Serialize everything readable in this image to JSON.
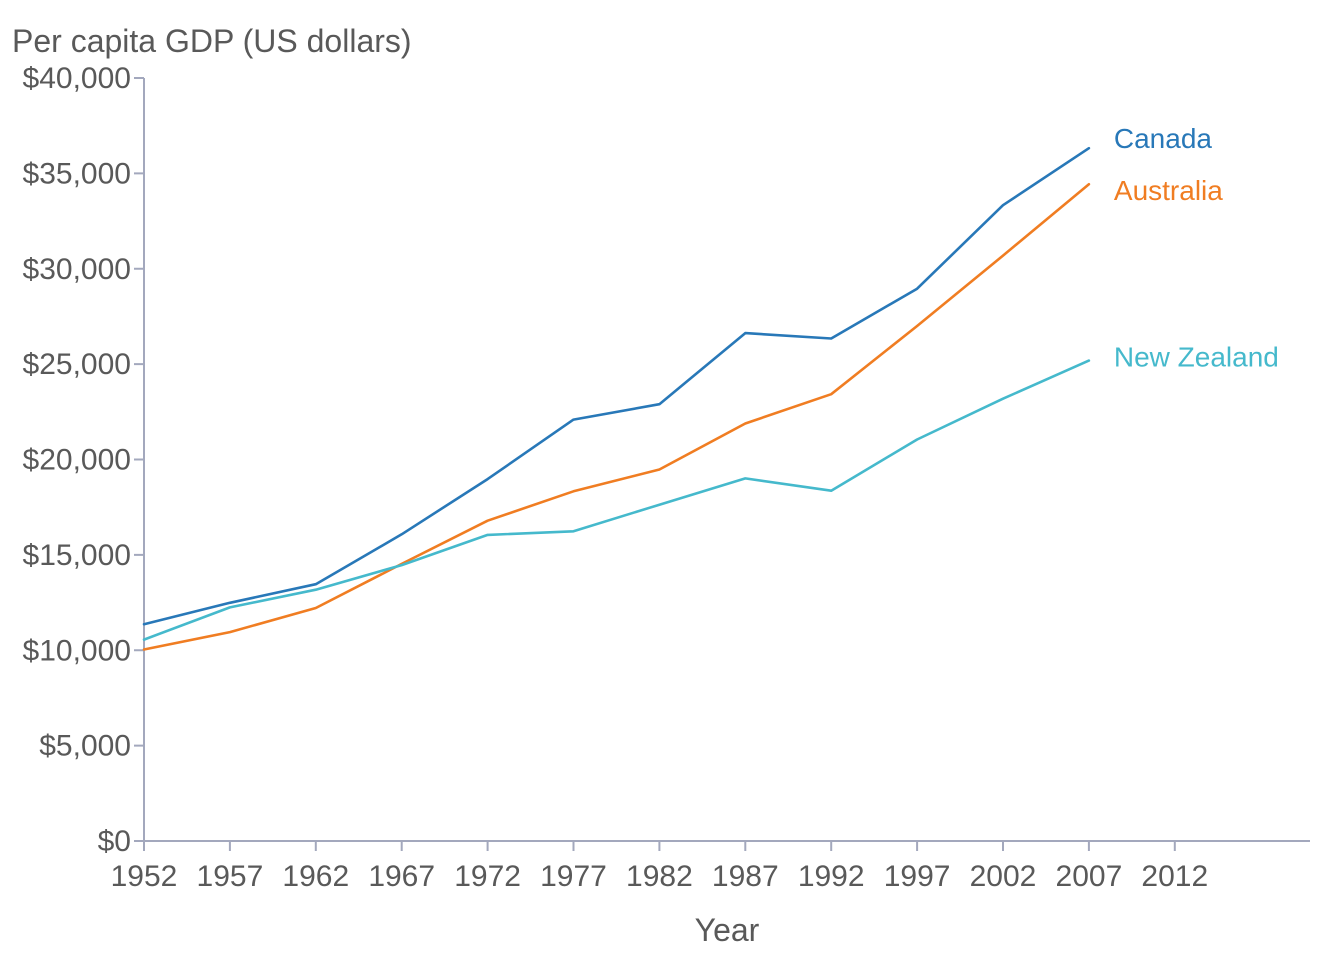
{
  "chart_data": {
    "type": "line",
    "title": "",
    "ylabel": "Per capita GDP (US dollars)",
    "xlabel": "Year",
    "ylim": [
      0,
      40000
    ],
    "xlim": [
      1952,
      2019
    ],
    "y_ticks": [
      0,
      5000,
      10000,
      15000,
      20000,
      25000,
      30000,
      35000,
      40000
    ],
    "y_tick_labels": [
      "$0",
      "$5,000",
      "$10,000",
      "$15,000",
      "$20,000",
      "$25,000",
      "$30,000",
      "$35,000",
      "$40,000"
    ],
    "x_ticks": [
      1952,
      1957,
      1962,
      1967,
      1972,
      1977,
      1982,
      1987,
      1992,
      1997,
      2002,
      2007,
      2012
    ],
    "x_tick_labels": [
      "1952",
      "1957",
      "1962",
      "1967",
      "1972",
      "1977",
      "1982",
      "1987",
      "1992",
      "1997",
      "2002",
      "2007",
      "2012"
    ],
    "grid": false,
    "legend": "inline labels at line ends",
    "x": [
      1952,
      1957,
      1962,
      1967,
      1972,
      1977,
      1982,
      1987,
      1992,
      1997,
      2002,
      2007
    ],
    "series": [
      {
        "name": "Canada",
        "color": "#2878b8",
        "values": [
          11367,
          12490,
          13462,
          16077,
          18971,
          22091,
          22899,
          26627,
          26343,
          28955,
          33329,
          36319
        ]
      },
      {
        "name": "Australia",
        "color": "#f07d22",
        "values": [
          10040,
          10950,
          12217,
          14526,
          16789,
          18334,
          19477,
          21889,
          23425,
          26998,
          30688,
          34435
        ]
      },
      {
        "name": "New Zealand",
        "color": "#45b9cc",
        "values": [
          10557,
          12247,
          13176,
          14464,
          16046,
          16234,
          17632,
          19007,
          18363,
          21050,
          23190,
          25185
        ]
      }
    ]
  }
}
